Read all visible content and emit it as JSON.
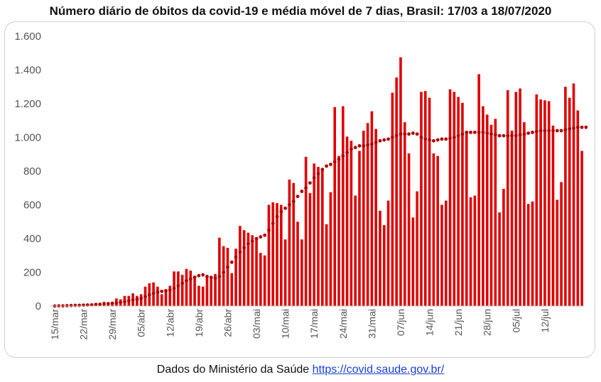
{
  "title": "Número diário de óbitos da covid-19 e média móvel de 7 dias, Brasil: 17/03 a 18/07/2020",
  "footer": {
    "text": "Dados do Ministério da Saúde",
    "link": "https://covid.saude.gov.br/"
  },
  "chart_data": {
    "type": "bar",
    "title": "Número diário de óbitos da covid-19 e média móvel de 7 dias, Brasil: 17/03 a 18/07/2020",
    "colors": {
      "bars": "#e00000",
      "moving_average": "#b00000"
    },
    "grid": false,
    "x_ticks": [
      "15/mar",
      "22/mar",
      "29/mar",
      "05/abr",
      "12/abr",
      "19/abr",
      "26/abr",
      "03/mai",
      "10/mai",
      "17/mai",
      "24/mai",
      "31/mai",
      "07/jun",
      "14/jun",
      "21/jun",
      "28/jun",
      "05/jul",
      "12/jul"
    ],
    "ylim": [
      0,
      1600
    ],
    "y_ticks": [
      0,
      200,
      400,
      600,
      800,
      1000,
      1200,
      1400,
      1600
    ],
    "y_tick_labels": [
      "0",
      "200",
      "400",
      "600",
      "800",
      "1.000",
      "1.200",
      "1.400",
      "1.600"
    ],
    "first_date": "15/mar",
    "series": [
      {
        "type": "bar",
        "values": [
          0,
          0,
          1,
          3,
          4,
          7,
          5,
          12,
          9,
          11,
          19,
          19,
          25,
          22,
          25,
          45,
          40,
          60,
          60,
          75,
          60,
          70,
          115,
          135,
          140,
          115,
          70,
          100,
          120,
          205,
          205,
          185,
          220,
          210,
          180,
          120,
          115,
          180,
          170,
          190,
          405,
          355,
          345,
          195,
          340,
          475,
          450,
          435,
          420,
          395,
          315,
          300,
          600,
          615,
          610,
          600,
          395,
          750,
          730,
          500,
          395,
          885,
          670,
          845,
          825,
          815,
          485,
          675,
          1180,
          890,
          1185,
          1005,
          980,
          655,
          920,
          1040,
          1085,
          1155,
          1050,
          565,
          480,
          625,
          1265,
          1355,
          1475,
          1090,
          905,
          525,
          680,
          1270,
          1275,
          1235,
          905,
          890,
          600,
          625,
          1285,
          1270,
          1240,
          1205,
          1025,
          645,
          655,
          1375,
          1185,
          1135,
          1075,
          1110,
          555,
          695,
          1280,
          1040,
          1270,
          1290,
          1090,
          605,
          620,
          1255,
          1225,
          1220,
          1215,
          1070,
          630,
          735,
          1300,
          1235,
          1320,
          1160,
          920
        ]
      },
      {
        "type": "scatter",
        "values": [
          0,
          1,
          1,
          2,
          3,
          4,
          4,
          5,
          6,
          7,
          9,
          10,
          12,
          14,
          16,
          18,
          22,
          26,
          31,
          36,
          40,
          45,
          56,
          66,
          75,
          82,
          87,
          90,
          95,
          105,
          120,
          135,
          150,
          160,
          170,
          180,
          185,
          175,
          170,
          165,
          175,
          200,
          230,
          260,
          290,
          320,
          345,
          370,
          385,
          400,
          410,
          420,
          450,
          490,
          530,
          560,
          580,
          600,
          620,
          650,
          680,
          700,
          730,
          760,
          785,
          810,
          830,
          840,
          855,
          870,
          890,
          910,
          930,
          940,
          950,
          950,
          955,
          960,
          970,
          980,
          985,
          990,
          1000,
          1010,
          1020,
          1020,
          1020,
          1025,
          1020,
          1000,
          990,
          985,
          980,
          985,
          990,
          990,
          995,
          1000,
          1010,
          1020,
          1030,
          1030,
          1030,
          1030,
          1030,
          1025,
          1020,
          1015,
          1010,
          1010,
          1010,
          1010,
          1010,
          1015,
          1020,
          1025,
          1030,
          1035,
          1040,
          1040,
          1040,
          1040,
          1040,
          1040,
          1045,
          1050,
          1055,
          1060,
          1060,
          1060
        ]
      }
    ]
  }
}
